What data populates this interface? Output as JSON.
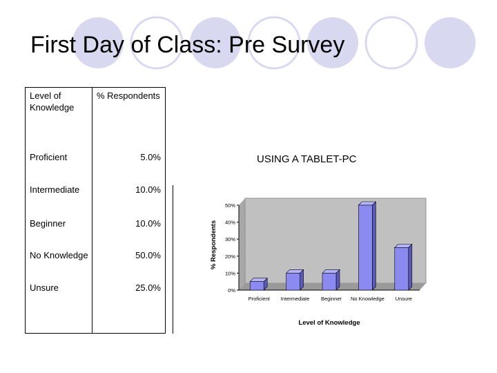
{
  "slide": {
    "title": "First Day of Class: Pre Survey",
    "subtitle": "USING A TABLET-PC"
  },
  "table": {
    "headers": [
      "Level of Knowledge",
      "% Respondents"
    ],
    "rows": [
      {
        "label": "Proficient",
        "value": "5.0%"
      },
      {
        "label": "Intermediate",
        "value": "10.0%"
      },
      {
        "label": "Beginner",
        "value": "10.0%"
      },
      {
        "label": "No Knowledge",
        "value": "50.0%"
      },
      {
        "label": "Unsure",
        "value": "25.0%"
      }
    ]
  },
  "colors": {
    "bar_fill": "#8a8af0",
    "bar_side": "#5a5ab8",
    "plot_bg": "#c0c0c0",
    "decor_circle": "#d8d8f0"
  },
  "chart_data": {
    "type": "bar",
    "categories": [
      "Proficient",
      "Intermediate",
      "Beginner",
      "No Knowledge",
      "Unsure"
    ],
    "values": [
      5,
      10,
      10,
      50,
      25
    ],
    "xlabel": "Level of Knowledge",
    "ylabel": "% Respondents",
    "ylim": [
      0,
      50
    ],
    "yticks": [
      "0%",
      "10%",
      "20%",
      "30%",
      "40%",
      "50%"
    ],
    "grid": false,
    "legend": "none"
  }
}
